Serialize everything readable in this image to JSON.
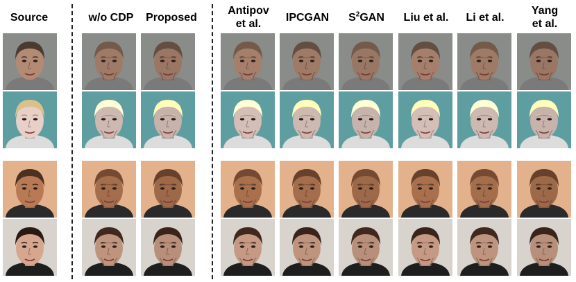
{
  "columns": [
    {
      "id": "source",
      "line1": "Source",
      "line2": ""
    },
    {
      "id": "wo-cdp",
      "line1": "w/o CDP",
      "line2": ""
    },
    {
      "id": "proposed",
      "line1": "Proposed",
      "line2": ""
    },
    {
      "id": "antipov",
      "line1": "Antipov",
      "line2": "et al."
    },
    {
      "id": "ipcgan",
      "line1": "IPCGAN",
      "line2": ""
    },
    {
      "id": "s2gan",
      "line1": "S",
      "sup": "2",
      "line1b": "GAN",
      "line2": ""
    },
    {
      "id": "liu",
      "line1": "Liu et al.",
      "line2": ""
    },
    {
      "id": "li",
      "line1": "Li et al.",
      "line2": ""
    },
    {
      "id": "yang",
      "line1": "Yang",
      "line2": "et al."
    }
  ],
  "rows": [
    {
      "id": "row-1",
      "bg": "#8a8c8a",
      "skin": "#b38a74",
      "hair": "#4a3a30",
      "shirt": "#7a7a7a"
    },
    {
      "id": "row-2",
      "bg": "#5e9ea0",
      "skin": "#e8cfc8",
      "hair": "#d9c189",
      "shirt": "#dcdcdc"
    },
    {
      "id": "row-3",
      "bg": "#e3b28c",
      "skin": "#b87a55",
      "hair": "#4c3020",
      "shirt": "#2a2a2a"
    },
    {
      "id": "row-4",
      "bg": "#d8d3cd",
      "skin": "#d6a68e",
      "hair": "#2a1a14",
      "shirt": "#1e1e1e"
    }
  ]
}
